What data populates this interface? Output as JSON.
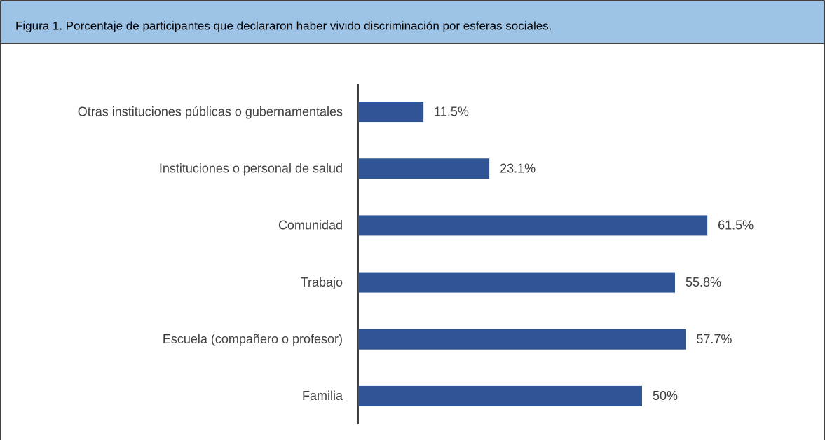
{
  "chart_data": {
    "type": "barh",
    "title": "Figura 1. Porcentaje de participantes que declararon haber vivido discriminación por esferas sociales.",
    "categories": [
      "Otras instituciones públicas o gubernamentales",
      "Instituciones o personal de salud",
      "Comunidad",
      "Trabajo",
      "Escuela (compañero o profesor)",
      "Familia"
    ],
    "values": [
      11.5,
      23.1,
      61.5,
      55.8,
      57.7,
      50
    ],
    "value_labels": [
      "11.5%",
      "23.1%",
      "61.5%",
      "55.8%",
      "57.7%",
      "50%"
    ],
    "color": "#2f5597",
    "xlim": [
      0,
      70
    ]
  }
}
